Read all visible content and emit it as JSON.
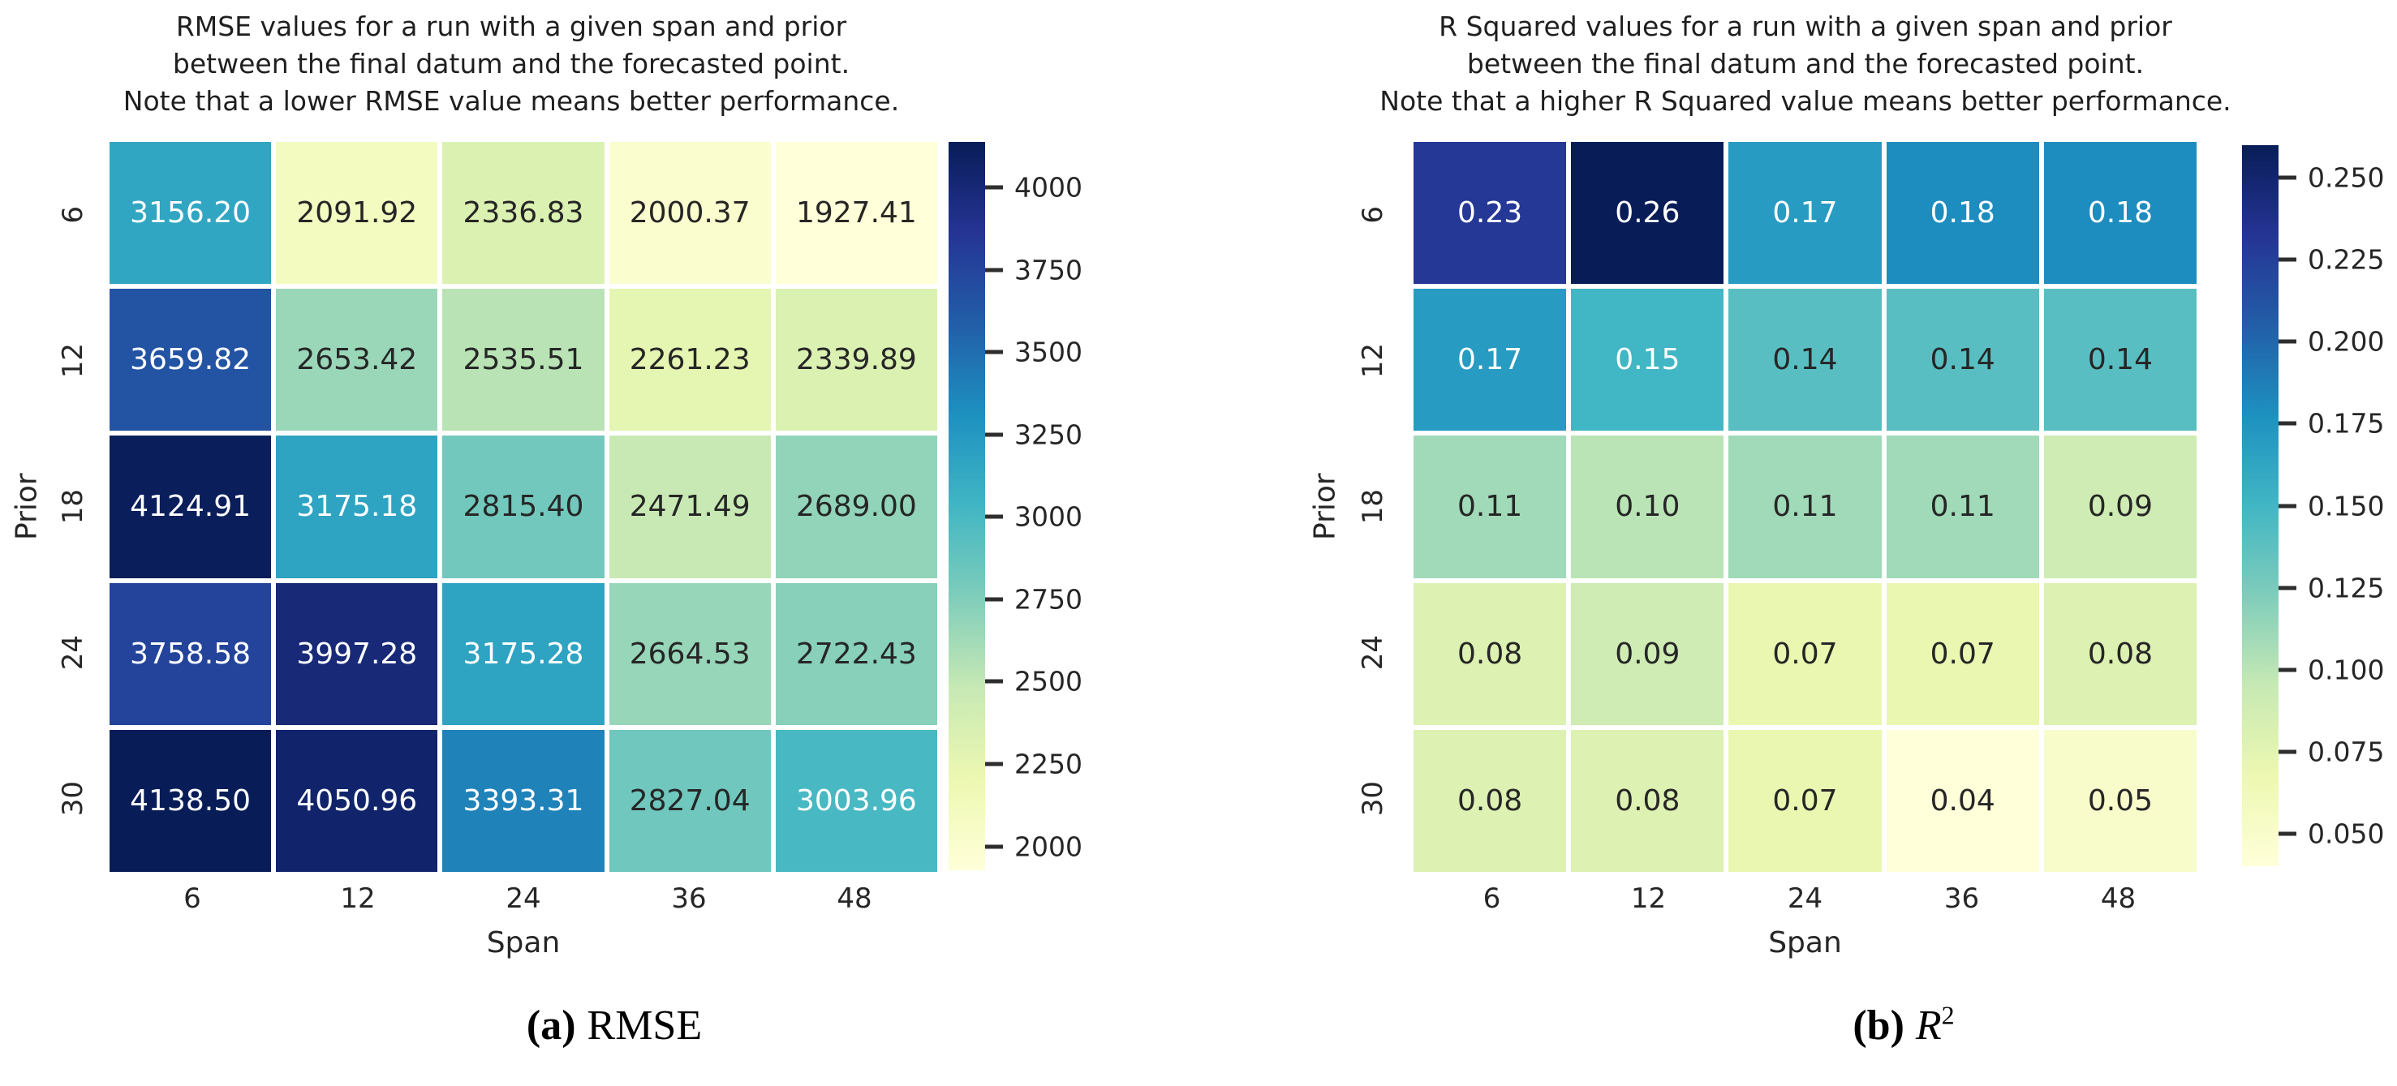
{
  "page": {
    "background": "#ffffff"
  },
  "colors": {
    "tick_color": "#2e2e2e",
    "annotation_light": "#ffffff",
    "annotation_dark": "#262626"
  },
  "chart_data": [
    {
      "type": "heatmap",
      "title_lines": [
        "RMSE values for a run with a given span and prior",
        "between the final datum and the forecasted point.",
        "Note that a lower RMSE value means better performance."
      ],
      "xlabel": "Span",
      "ylabel": "Prior",
      "x_categories": [
        "6",
        "12",
        "24",
        "36",
        "48"
      ],
      "y_categories": [
        "6",
        "12",
        "18",
        "24",
        "30"
      ],
      "values": [
        [
          3156.2,
          2091.92,
          2336.83,
          2000.37,
          1927.41
        ],
        [
          3659.82,
          2653.42,
          2535.51,
          2261.23,
          2339.89
        ],
        [
          4124.91,
          3175.18,
          2815.4,
          2471.49,
          2689.0
        ],
        [
          3758.58,
          3997.28,
          3175.28,
          2664.53,
          2722.43
        ],
        [
          4138.5,
          4050.96,
          3393.31,
          2827.04,
          3003.96
        ]
      ],
      "value_decimals": 2,
      "vmin": 1927.41,
      "vmax": 4138.5,
      "colormap_stops": [
        "#ffffd9",
        "#edf8b1",
        "#c7e9b4",
        "#7fcdbb",
        "#41b6c4",
        "#1d91c0",
        "#225ea8",
        "#253494",
        "#081d58"
      ],
      "colorbar": {
        "tick_values": [
          4000,
          3750,
          3500,
          3250,
          3000,
          2750,
          2500,
          2250,
          2000
        ],
        "tick_labels": [
          "4000",
          "3750",
          "3500",
          "3250",
          "3000",
          "2750",
          "2500",
          "2250",
          "2000"
        ]
      },
      "caption": {
        "index": "(a)",
        "label": "RMSE",
        "superscript": ""
      }
    },
    {
      "type": "heatmap",
      "title_lines": [
        "R Squared values for a run with a given span and prior",
        "between the final datum and the forecasted point.",
        "Note that a higher R Squared value means better performance."
      ],
      "xlabel": "Span",
      "ylabel": "Prior",
      "x_categories": [
        "6",
        "12",
        "24",
        "36",
        "48"
      ],
      "y_categories": [
        "6",
        "12",
        "18",
        "24",
        "30"
      ],
      "values": [
        [
          0.23,
          0.26,
          0.17,
          0.18,
          0.18
        ],
        [
          0.17,
          0.15,
          0.14,
          0.14,
          0.14
        ],
        [
          0.11,
          0.1,
          0.11,
          0.11,
          0.09
        ],
        [
          0.08,
          0.09,
          0.07,
          0.07,
          0.08
        ],
        [
          0.08,
          0.08,
          0.07,
          0.04,
          0.05
        ]
      ],
      "value_decimals": 2,
      "vmin": 0.04,
      "vmax": 0.26,
      "colormap_stops": [
        "#ffffd9",
        "#edf8b1",
        "#c7e9b4",
        "#7fcdbb",
        "#41b6c4",
        "#1d91c0",
        "#225ea8",
        "#253494",
        "#081d58"
      ],
      "colorbar": {
        "tick_values": [
          0.25,
          0.225,
          0.2,
          0.175,
          0.15,
          0.125,
          0.1,
          0.075,
          0.05
        ],
        "tick_labels": [
          "0.250",
          "0.225",
          "0.200",
          "0.175",
          "0.150",
          "0.125",
          "0.100",
          "0.075",
          "0.050"
        ]
      },
      "caption": {
        "index": "(b)",
        "label": "R",
        "superscript": "2"
      }
    }
  ]
}
